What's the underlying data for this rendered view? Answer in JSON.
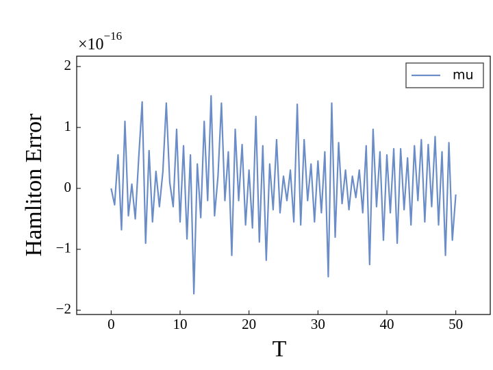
{
  "chart_data": {
    "type": "line",
    "xlabel": "T",
    "ylabel": "Hamliton Error",
    "offset_text": {
      "base": "×10",
      "exponent": "−16"
    },
    "x": [
      0,
      0.5,
      1,
      1.5,
      2,
      2.5,
      3,
      3.5,
      4,
      4.5,
      5,
      5.5,
      6,
      6.5,
      7,
      7.5,
      8,
      8.5,
      9,
      9.5,
      10,
      10.5,
      11,
      11.5,
      12,
      12.5,
      13,
      13.5,
      14,
      14.5,
      15,
      15.5,
      16,
      16.5,
      17,
      17.5,
      18,
      18.5,
      19,
      19.5,
      20,
      20.5,
      21,
      21.5,
      22,
      22.5,
      23,
      23.5,
      24,
      24.5,
      25,
      25.5,
      26,
      26.5,
      27,
      27.5,
      28,
      28.5,
      29,
      29.5,
      30,
      30.5,
      31,
      31.5,
      32,
      32.5,
      33,
      33.5,
      34,
      34.5,
      35,
      35.5,
      36,
      36.5,
      37,
      37.5,
      38,
      38.5,
      39,
      39.5,
      40,
      40.5,
      41,
      41.5,
      42,
      42.5,
      43,
      43.5,
      44,
      44.5,
      45,
      45.5,
      46,
      46.5,
      47,
      47.5,
      48,
      48.5,
      49,
      49.5,
      50
    ],
    "series": [
      {
        "name": "mu",
        "color": "#6a8cc7",
        "values": [
          0,
          -0.27,
          0.55,
          -0.68,
          1.1,
          -0.45,
          0.07,
          -0.5,
          0.5,
          1.42,
          -0.9,
          0.62,
          -0.55,
          0.28,
          -0.3,
          0.27,
          1.4,
          0.1,
          -0.3,
          0.97,
          -0.55,
          0.7,
          -0.83,
          0.55,
          -1.73,
          0.4,
          -0.48,
          1.1,
          -0.2,
          1.52,
          -0.45,
          0.2,
          1.4,
          -0.2,
          0.6,
          -1.1,
          0.97,
          -0.2,
          0.72,
          -0.6,
          0.3,
          -0.65,
          1.18,
          -0.88,
          0.7,
          -1.18,
          0.4,
          -0.35,
          0.8,
          -0.4,
          0.2,
          -0.2,
          0.3,
          -0.55,
          1.38,
          -0.6,
          0.8,
          -0.2,
          0.4,
          -0.55,
          0.45,
          -0.4,
          0.6,
          -1.45,
          1.4,
          -0.8,
          0.75,
          -0.25,
          0.3,
          -0.35,
          0.2,
          -0.15,
          0.3,
          -0.4,
          0.7,
          -1.25,
          0.97,
          -0.3,
          0.6,
          -0.85,
          0.55,
          -0.4,
          0.65,
          -0.9,
          0.65,
          -0.35,
          0.5,
          -0.6,
          0.7,
          -0.2,
          0.8,
          -0.55,
          0.72,
          -0.3,
          0.85,
          -0.6,
          0.6,
          -1.1,
          0.75,
          -0.85,
          -0.1
        ]
      }
    ],
    "xlim": [
      -5,
      55
    ],
    "ylim": [
      -2.07,
      2.17
    ],
    "xticks": [
      0,
      10,
      20,
      30,
      40,
      50
    ],
    "yticks": [
      -2,
      -1,
      0,
      1,
      2
    ],
    "legend": "upper right"
  }
}
